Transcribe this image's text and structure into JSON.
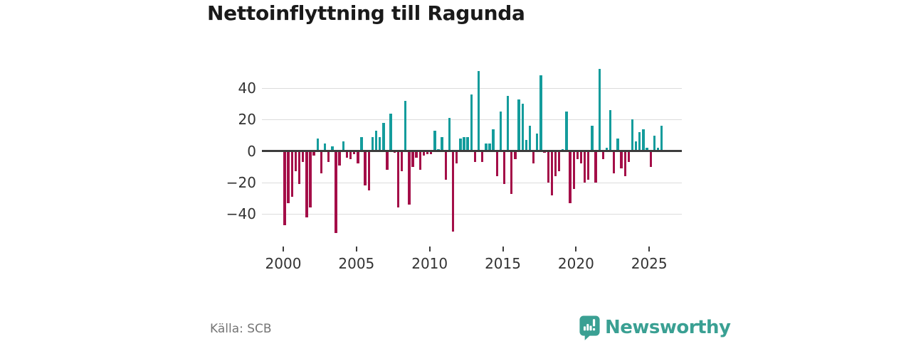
{
  "title": "Nettoinflyttning till Ragunda",
  "source": "Källa: SCB",
  "branding": {
    "name": "Newsworthy",
    "icon": "newsworthy-speech-bubble-barchart-icon"
  },
  "colors": {
    "positive_bar": "#149c9c",
    "negative_bar": "#a40e48",
    "zero_axis": "#3c3c3c",
    "grid": "#dcdcdc",
    "tick_text": "#333333",
    "title_text": "#1a1a1a",
    "source_text": "#757575",
    "brand_teal": "#3aa093",
    "background": "#ffffff"
  },
  "chart_data": {
    "type": "bar",
    "title": "Nettoinflyttning till Ragunda",
    "xlabel": "",
    "ylabel": "",
    "frequency": "quarterly",
    "start": "2000Q1",
    "end": "2025Q4",
    "x_tick_labels": [
      "2000",
      "2005",
      "2010",
      "2015",
      "2020",
      "2025"
    ],
    "y_tick_labels": [
      "40",
      "20",
      "0",
      "−20",
      "−40"
    ],
    "y_tick_values": [
      40,
      20,
      0,
      -20,
      -40
    ],
    "ylim": [
      -55,
      55
    ],
    "grid": "horizontal-only",
    "legend": "none",
    "values": [
      -47,
      -33,
      -29,
      -13,
      -21,
      -7,
      -42,
      -36,
      -3,
      8,
      -14,
      5,
      -7,
      3,
      -52,
      -9,
      6,
      -4,
      -5,
      -2,
      -8,
      9,
      -22,
      -25,
      9,
      13,
      9,
      18,
      -12,
      24,
      -1,
      -36,
      -13,
      32,
      -34,
      -10,
      -4,
      -12,
      -3,
      -2,
      -2,
      13,
      1,
      9,
      -18,
      21,
      -51,
      -8,
      8,
      9,
      9,
      36,
      -7,
      51,
      -7,
      5,
      5,
      14,
      -16,
      25,
      -21,
      35,
      -27,
      -5,
      33,
      30,
      7,
      16,
      -8,
      11,
      48,
      -1,
      -20,
      -28,
      -16,
      -13,
      1,
      25,
      -33,
      -24,
      -5,
      -8,
      -20,
      -18,
      16,
      -20,
      52,
      -5,
      2,
      26,
      -14,
      8,
      -11,
      -16,
      -7,
      20,
      6,
      12,
      14,
      2,
      -10,
      10,
      2,
      16
    ]
  }
}
